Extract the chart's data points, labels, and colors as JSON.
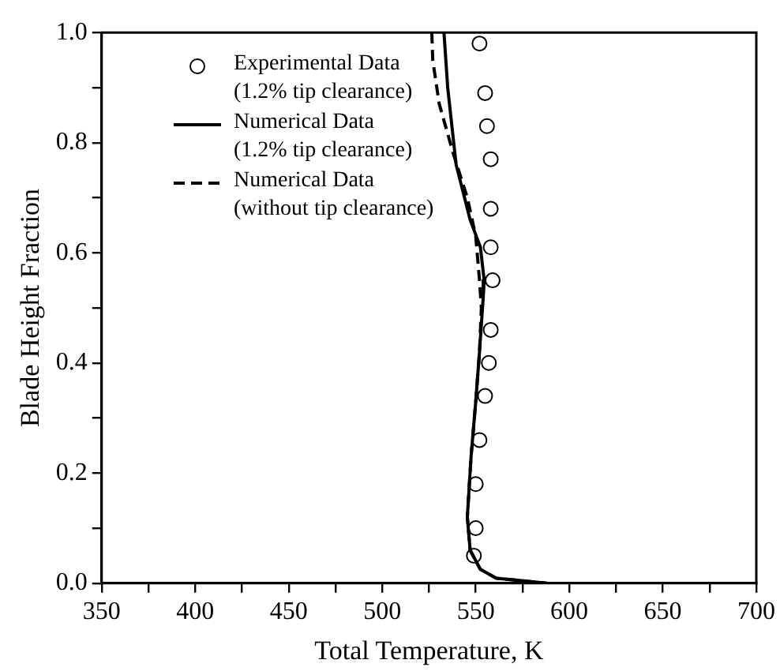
{
  "chart_data": {
    "type": "line",
    "xlabel": "Total Temperature, K",
    "ylabel": "Blade Height Fraction",
    "xlim": [
      350,
      700
    ],
    "ylim": [
      0,
      1
    ],
    "xticks": [
      350,
      {
        "value": 375,
        "label": null
      },
      400,
      {
        "value": 425,
        "label": null
      },
      450,
      {
        "value": 475,
        "label": null
      },
      500,
      {
        "value": 525,
        "label": null
      },
      550,
      {
        "value": 575,
        "label": null
      },
      600,
      {
        "value": 625,
        "label": null
      },
      650,
      {
        "value": 675,
        "label": null
      },
      700
    ],
    "yticks": [
      {
        "value": 0,
        "label": "0.0"
      },
      {
        "value": 0.1,
        "label": null
      },
      {
        "value": 0.2,
        "label": "0.2"
      },
      {
        "value": 0.3,
        "label": null
      },
      {
        "value": 0.4,
        "label": "0.4"
      },
      {
        "value": 0.5,
        "label": null
      },
      {
        "value": 0.6,
        "label": "0.6"
      },
      {
        "value": 0.7,
        "label": null
      },
      {
        "value": 0.8,
        "label": "0.8"
      },
      {
        "value": 0.9,
        "label": null
      },
      {
        "value": 1,
        "label": "1.0"
      }
    ],
    "grid": false,
    "legend": "top left",
    "series": [
      {
        "name": "Experimental Data (1.2% tip clearance)",
        "type": "scatter",
        "marker": "circle",
        "color": "#000000",
        "x": [
          552,
          555,
          556,
          558,
          558,
          558,
          559,
          558,
          557,
          555,
          552,
          550,
          550,
          549
        ],
        "values": [
          0.98,
          0.89,
          0.83,
          0.77,
          0.68,
          0.61,
          0.55,
          0.46,
          0.4,
          0.34,
          0.26,
          0.18,
          0.1,
          0.05
        ]
      },
      {
        "name": "Numerical Data (1.2% tip clearance)",
        "line_style": "solid",
        "marker": "none",
        "color": "#000000",
        "x": [
          533,
          535,
          539.5,
          547,
          552.5,
          554.5,
          554,
          552,
          550,
          547.5,
          545.5,
          547,
          552.5,
          561,
          570,
          588
        ],
        "values": [
          1,
          0.9,
          0.76,
          0.66,
          0.61,
          0.55,
          0.52,
          0.42,
          0.33,
          0.23,
          0.12,
          0.06,
          0.025,
          0.009,
          0.006,
          0
        ]
      },
      {
        "name": "Numerical Data (without tip clearance)",
        "line_style": "dashed",
        "marker": "none",
        "color": "#000000",
        "x": [
          526.5,
          527,
          530.5,
          538,
          545.5,
          550,
          552,
          553,
          552,
          550,
          547.5,
          545.5,
          547,
          552.5,
          561,
          570,
          588
        ],
        "values": [
          1,
          0.95,
          0.87,
          0.78,
          0.7,
          0.63,
          0.55,
          0.5,
          0.42,
          0.33,
          0.23,
          0.12,
          0.06,
          0.025,
          0.009,
          0.006,
          0
        ]
      }
    ]
  }
}
